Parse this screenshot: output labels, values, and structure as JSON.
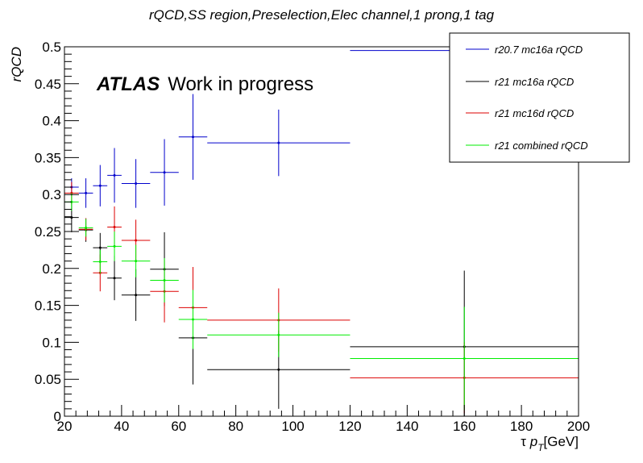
{
  "chart_data": {
    "type": "scatter",
    "title": "rQCD,SS region,Preselection,Elec channel,1 prong,1 tag",
    "xlabel": {
      "prefix": "τ ",
      "p": "p",
      "sub": "T",
      "suffix": "[GeV]"
    },
    "ylabel": "rQCD",
    "xlim": [
      20,
      200
    ],
    "ylim": [
      0,
      0.5
    ],
    "x_ticks": [
      20,
      40,
      60,
      80,
      100,
      120,
      140,
      160,
      180,
      200
    ],
    "y_ticks": [
      0,
      0.05,
      0.1,
      0.15,
      0.2,
      0.25,
      0.3,
      0.35,
      0.4,
      0.45,
      0.5
    ],
    "x_tick_labels": [
      "20",
      "40",
      "60",
      "80",
      "100",
      "120",
      "140",
      "160",
      "180",
      "200"
    ],
    "y_tick_labels": [
      "0",
      "0.05",
      "0.1",
      "0.15",
      "0.2",
      "0.25",
      "0.3",
      "0.35",
      "0.4",
      "0.45",
      "0.5"
    ],
    "annotation": {
      "bold": "ATLAS",
      "text": "Work in progress"
    },
    "legend_position": "top-right",
    "series": [
      {
        "name": "r20.7 mc16a rQCD",
        "color": "#0000cc",
        "points": [
          {
            "x": 22.5,
            "xlo": 20,
            "xhi": 25,
            "y": 0.31,
            "yerr": 0.012
          },
          {
            "x": 27.5,
            "xlo": 25,
            "xhi": 30,
            "y": 0.302,
            "yerr": 0.02
          },
          {
            "x": 32.5,
            "xlo": 30,
            "xhi": 35,
            "y": 0.312,
            "yerr": 0.028
          },
          {
            "x": 37.5,
            "xlo": 35,
            "xhi": 40,
            "y": 0.326,
            "yerr": 0.037
          },
          {
            "x": 45,
            "xlo": 40,
            "xhi": 50,
            "y": 0.315,
            "yerr": 0.033
          },
          {
            "x": 55,
            "xlo": 50,
            "xhi": 60,
            "y": 0.33,
            "yerr": 0.045
          },
          {
            "x": 65,
            "xlo": 60,
            "xhi": 70,
            "y": 0.378,
            "yerr": 0.058
          },
          {
            "x": 95,
            "xlo": 70,
            "xhi": 120,
            "y": 0.37,
            "yerr": 0.045
          },
          {
            "x": 160,
            "xlo": 120,
            "xhi": 200,
            "y": 0.495,
            "yerr": 0.06
          }
        ]
      },
      {
        "name": "r21 mc16a rQCD",
        "color": "#000000",
        "points": [
          {
            "x": 22.5,
            "xlo": 20,
            "xhi": 25,
            "y": 0.269,
            "yerr": 0.02
          },
          {
            "x": 27.5,
            "xlo": 25,
            "xhi": 30,
            "y": 0.252,
            "yerr": 0.016
          },
          {
            "x": 32.5,
            "xlo": 30,
            "xhi": 35,
            "y": 0.228,
            "yerr": 0.02
          },
          {
            "x": 37.5,
            "xlo": 35,
            "xhi": 40,
            "y": 0.187,
            "yerr": 0.03
          },
          {
            "x": 45,
            "xlo": 40,
            "xhi": 50,
            "y": 0.164,
            "yerr": 0.035
          },
          {
            "x": 55,
            "xlo": 50,
            "xhi": 60,
            "y": 0.199,
            "yerr": 0.05
          },
          {
            "x": 65,
            "xlo": 60,
            "xhi": 70,
            "y": 0.106,
            "yerr": 0.063
          },
          {
            "x": 95,
            "xlo": 70,
            "xhi": 120,
            "y": 0.063,
            "yerr": 0.053
          },
          {
            "x": 160,
            "xlo": 120,
            "xhi": 200,
            "y": 0.094,
            "yerr": 0.103
          }
        ]
      },
      {
        "name": "r21 mc16d rQCD",
        "color": "#dd0000",
        "points": [
          {
            "x": 22.5,
            "xlo": 20,
            "xhi": 25,
            "y": 0.302,
            "yerr": 0.015
          },
          {
            "x": 27.5,
            "xlo": 25,
            "xhi": 30,
            "y": 0.253,
            "yerr": 0.015
          },
          {
            "x": 32.5,
            "xlo": 30,
            "xhi": 35,
            "y": 0.194,
            "yerr": 0.025
          },
          {
            "x": 37.5,
            "xlo": 35,
            "xhi": 40,
            "y": 0.256,
            "yerr": 0.028
          },
          {
            "x": 45,
            "xlo": 40,
            "xhi": 50,
            "y": 0.238,
            "yerr": 0.028
          },
          {
            "x": 55,
            "xlo": 50,
            "xhi": 60,
            "y": 0.169,
            "yerr": 0.042
          },
          {
            "x": 65,
            "xlo": 60,
            "xhi": 70,
            "y": 0.147,
            "yerr": 0.055
          },
          {
            "x": 95,
            "xlo": 70,
            "xhi": 120,
            "y": 0.13,
            "yerr": 0.043
          },
          {
            "x": 160,
            "xlo": 120,
            "xhi": 200,
            "y": 0.052,
            "yerr": 0.048
          }
        ]
      },
      {
        "name": "r21 combined rQCD",
        "color": "#00ee00",
        "points": [
          {
            "x": 22.5,
            "xlo": 20,
            "xhi": 25,
            "y": 0.29,
            "yerr": 0.012
          },
          {
            "x": 27.5,
            "xlo": 25,
            "xhi": 30,
            "y": 0.255,
            "yerr": 0.012
          },
          {
            "x": 32.5,
            "xlo": 30,
            "xhi": 35,
            "y": 0.209,
            "yerr": 0.016
          },
          {
            "x": 37.5,
            "xlo": 35,
            "xhi": 40,
            "y": 0.23,
            "yerr": 0.02
          },
          {
            "x": 45,
            "xlo": 40,
            "xhi": 50,
            "y": 0.21,
            "yerr": 0.022
          },
          {
            "x": 55,
            "xlo": 50,
            "xhi": 60,
            "y": 0.184,
            "yerr": 0.03
          },
          {
            "x": 65,
            "xlo": 60,
            "xhi": 70,
            "y": 0.131,
            "yerr": 0.04
          },
          {
            "x": 95,
            "xlo": 70,
            "xhi": 120,
            "y": 0.11,
            "yerr": 0.03
          },
          {
            "x": 160,
            "xlo": 120,
            "xhi": 200,
            "y": 0.078,
            "yerr": 0.07
          }
        ]
      }
    ]
  }
}
